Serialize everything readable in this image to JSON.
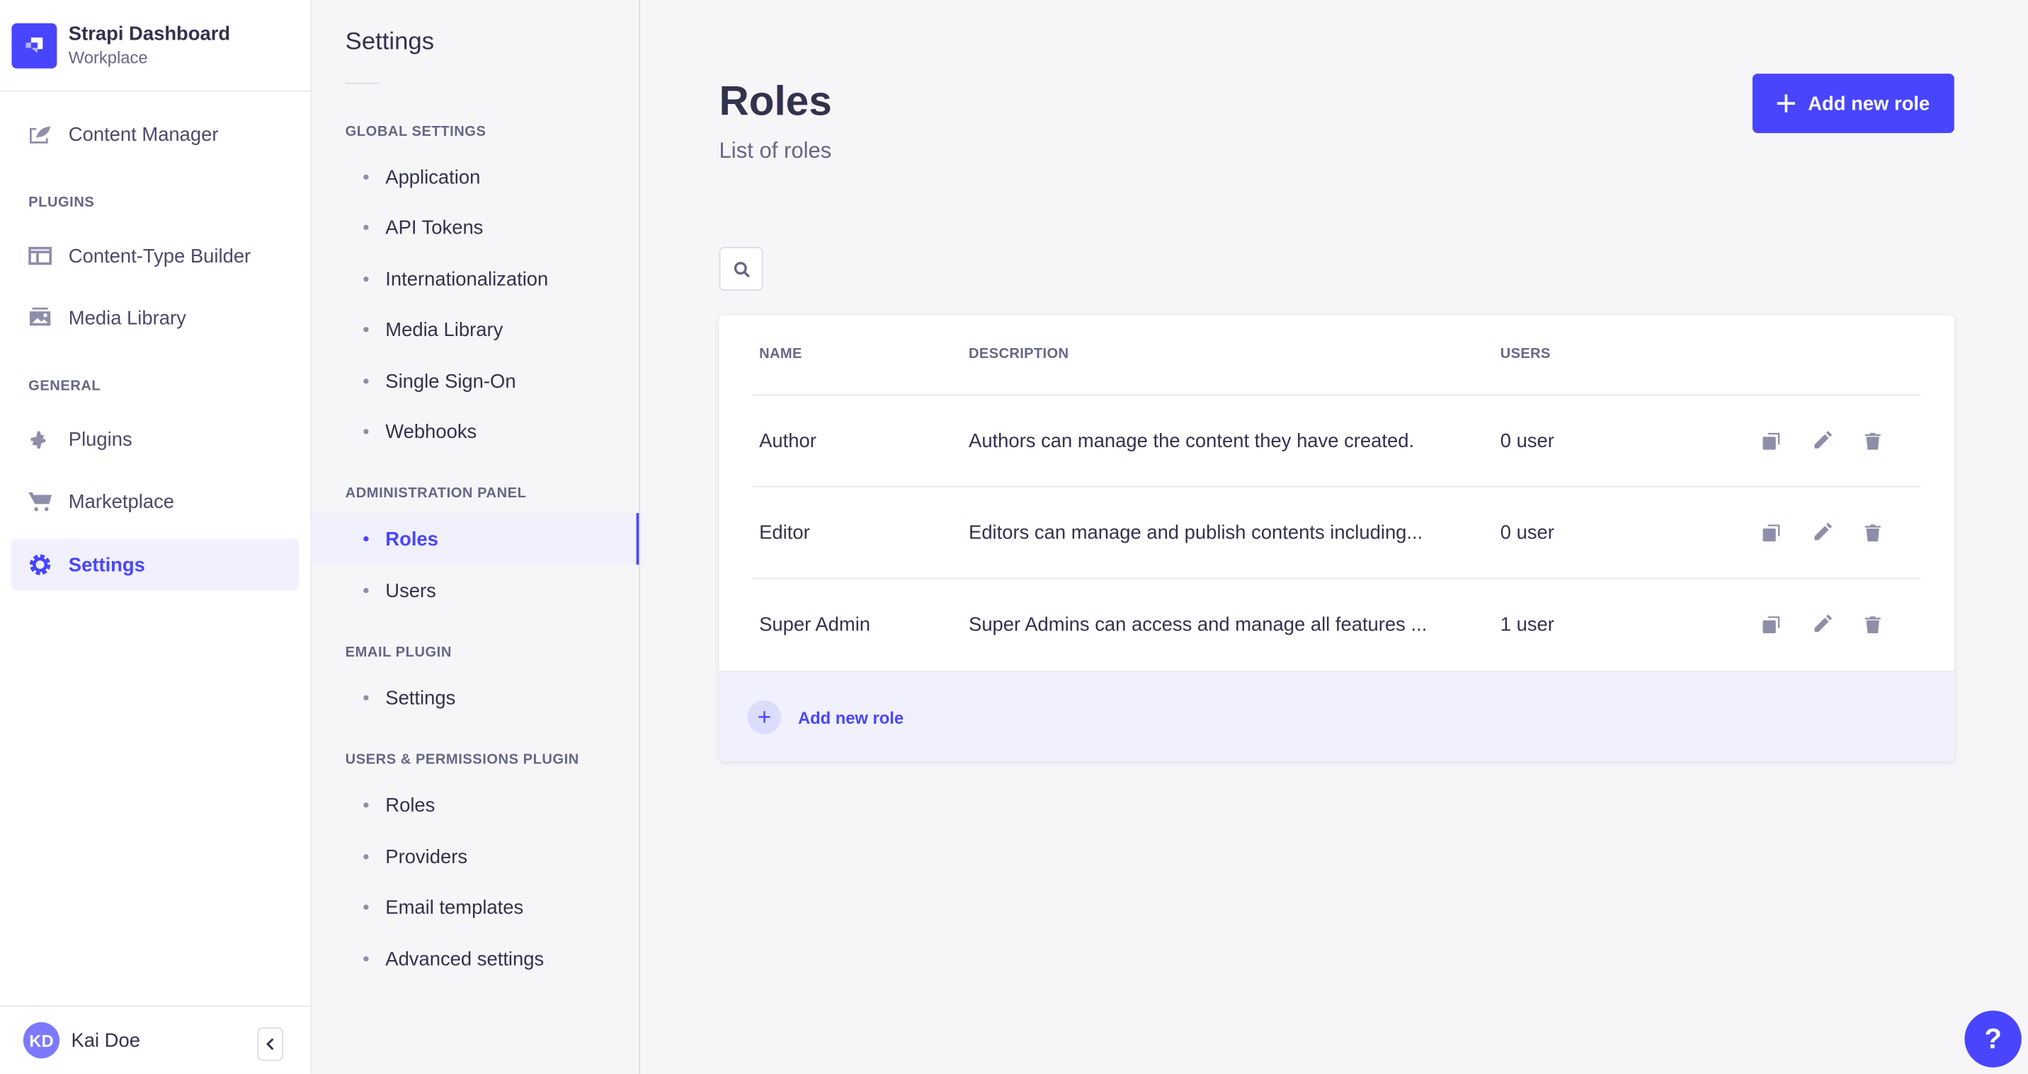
{
  "brand": {
    "title": "Strapi Dashboard",
    "subtitle": "Workplace",
    "color": "#4945ff"
  },
  "nav": {
    "content_manager": "Content Manager",
    "plugins_section": "PLUGINS",
    "content_type_builder": "Content-Type Builder",
    "media_library": "Media Library",
    "general_section": "GENERAL",
    "plugins": "Plugins",
    "marketplace": "Marketplace",
    "settings": "Settings"
  },
  "user": {
    "initials": "KD",
    "name": "Kai Doe"
  },
  "settings_nav": {
    "title": "Settings",
    "sections": [
      {
        "label": "GLOBAL SETTINGS",
        "items": [
          "Application",
          "API Tokens",
          "Internationalization",
          "Media Library",
          "Single Sign-On",
          "Webhooks"
        ]
      },
      {
        "label": "ADMINISTRATION PANEL",
        "items": [
          "Roles",
          "Users"
        ]
      },
      {
        "label": "EMAIL PLUGIN",
        "items": [
          "Settings"
        ]
      },
      {
        "label": "USERS & PERMISSIONS PLUGIN",
        "items": [
          "Roles",
          "Providers",
          "Email templates",
          "Advanced settings"
        ]
      }
    ],
    "active": "Roles"
  },
  "page": {
    "title": "Roles",
    "subtitle": "List of roles",
    "add_button": "Add new role"
  },
  "table": {
    "headers": [
      "NAME",
      "DESCRIPTION",
      "USERS"
    ],
    "rows": [
      {
        "name": "Author",
        "description": "Authors can manage the content they have created.",
        "users": "0 user"
      },
      {
        "name": "Editor",
        "description": "Editors can manage and publish contents including...",
        "users": "0 user"
      },
      {
        "name": "Super Admin",
        "description": "Super Admins can access and manage all features ...",
        "users": "1 user"
      }
    ],
    "footer_add": "Add new role"
  },
  "help": "?"
}
